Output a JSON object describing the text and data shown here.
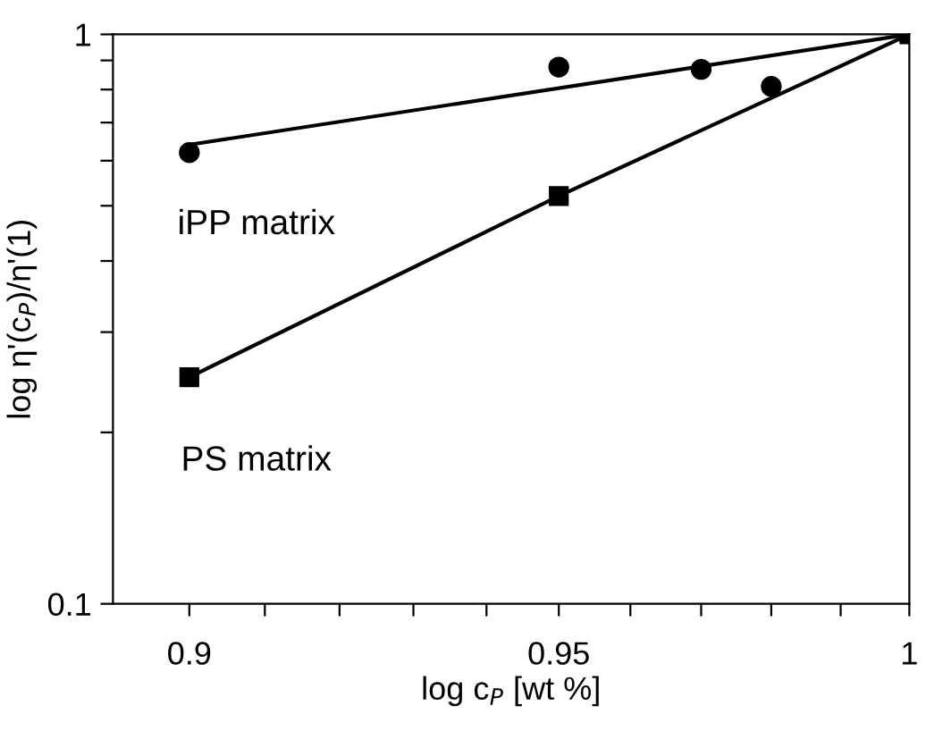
{
  "chart_data": {
    "type": "line",
    "xlabel": "log c$_{P}$ [wt %]",
    "ylabel": "log η'(c$_{P}$)/η'(1)",
    "log": "xy",
    "xlim": [
      0.89,
      1
    ],
    "ylim": [
      0.1,
      1
    ],
    "xticks": [
      0.9,
      {
        "value": 0.91,
        "label": null
      },
      {
        "value": 0.92,
        "label": null
      },
      {
        "value": 0.93,
        "label": null
      },
      {
        "value": 0.94,
        "label": null
      },
      0.95,
      {
        "value": 0.96,
        "label": null
      },
      {
        "value": 0.97,
        "label": null
      },
      {
        "value": 0.98,
        "label": null
      },
      {
        "value": 0.99,
        "label": null
      },
      1
    ],
    "yticks": [
      0.1,
      {
        "value": 0.2,
        "label": null
      },
      {
        "value": 0.3,
        "label": null
      },
      {
        "value": 0.4,
        "label": null
      },
      {
        "value": 0.5,
        "label": null
      },
      {
        "value": 0.6,
        "label": null
      },
      {
        "value": 0.7,
        "label": null
      },
      {
        "value": 0.8,
        "label": null
      },
      {
        "value": 0.9,
        "label": null
      },
      1
    ],
    "grid": false,
    "legend": false,
    "series": [
      {
        "type": "scatter",
        "color": "#000000",
        "marker": "circle",
        "x": [
          0.9,
          0.95,
          0.97,
          0.98
        ],
        "values": [
          0.62,
          0.876,
          0.868,
          0.81
        ]
      },
      {
        "color": "#000000",
        "x": [
          0.9,
          1
        ],
        "values": [
          0.64,
          1
        ]
      },
      {
        "color": "#000000",
        "marker": "square",
        "x": [
          0.9,
          0.95,
          1
        ],
        "values": [
          0.25,
          0.52,
          1
        ]
      }
    ],
    "annotations": [
      "iPP matrix",
      "PS matrix"
    ]
  }
}
